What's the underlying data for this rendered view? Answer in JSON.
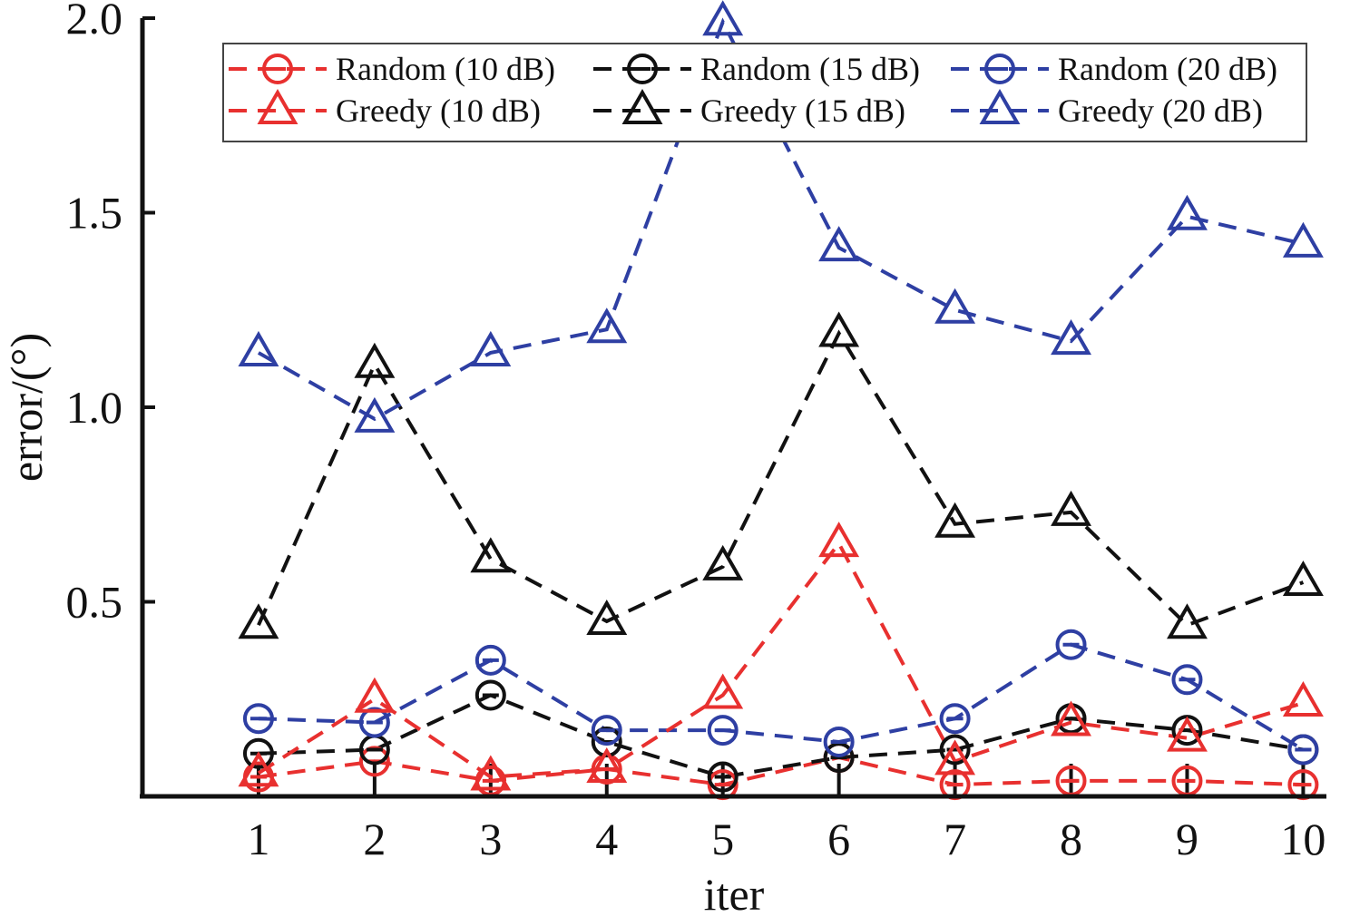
{
  "chart_data": {
    "type": "line",
    "xlabel": "iter",
    "ylabel": "error/(°)",
    "xlim": [
      0,
      10.2
    ],
    "ylim": [
      0,
      2.0
    ],
    "x": [
      1,
      2,
      3,
      4,
      5,
      6,
      7,
      8,
      9,
      10
    ],
    "x_tick_labels": [
      "1",
      "2",
      "3",
      "4",
      "5",
      "6",
      "7",
      "8",
      "9",
      "10"
    ],
    "y_ticks": [
      0.5,
      1.0,
      1.5,
      2.0
    ],
    "y_tick_labels": [
      "0.5",
      "1.0",
      "1.5",
      "2.0"
    ],
    "grid": false,
    "legend_position": "top",
    "series": [
      {
        "name": "Random (10 dB)",
        "color": "#e8302f",
        "marker": "circle",
        "values": [
          0.05,
          0.09,
          0.04,
          0.07,
          0.03,
          0.1,
          0.03,
          0.04,
          0.04,
          0.03
        ]
      },
      {
        "name": "Random (15 dB)",
        "color": "#111111",
        "marker": "circle",
        "values": [
          0.11,
          0.12,
          0.26,
          0.14,
          0.05,
          0.1,
          0.12,
          0.2,
          0.17,
          0.12
        ]
      },
      {
        "name": "Random (20 dB)",
        "color": "#2e3fa3",
        "marker": "circle",
        "values": [
          0.2,
          0.19,
          0.35,
          0.17,
          0.17,
          0.14,
          0.2,
          0.39,
          0.3,
          0.12
        ]
      },
      {
        "name": "Greedy (10 dB)",
        "color": "#e8302f",
        "marker": "triangle",
        "values": [
          0.06,
          0.25,
          0.05,
          0.07,
          0.26,
          0.65,
          0.09,
          0.19,
          0.15,
          0.24
        ]
      },
      {
        "name": "Greedy (15 dB)",
        "color": "#111111",
        "marker": "triangle",
        "values": [
          0.44,
          1.11,
          0.61,
          0.45,
          0.59,
          1.19,
          0.7,
          0.73,
          0.44,
          0.55
        ]
      },
      {
        "name": "Greedy (20 dB)",
        "color": "#2e3fa3",
        "marker": "triangle",
        "values": [
          1.14,
          0.97,
          1.14,
          1.2,
          1.99,
          1.41,
          1.25,
          1.17,
          1.49,
          1.42
        ]
      }
    ]
  }
}
